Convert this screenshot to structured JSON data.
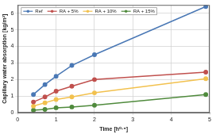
{
  "chart_data": {
    "type": "line",
    "x_label": "Time [h⁰·⁵]",
    "y_label": "Capillary water absorption [kg/m²]",
    "x": [
      0.41,
      0.71,
      1,
      1.41,
      2,
      4.9
    ],
    "series": [
      {
        "name": "Ref",
        "color": "#4a78b5",
        "values": [
          1.1,
          1.7,
          2.2,
          2.85,
          3.5,
          6.4
        ]
      },
      {
        "name": "RA + 5%",
        "color": "#c0504d",
        "values": [
          0.65,
          0.95,
          1.3,
          1.6,
          2.0,
          2.45
        ]
      },
      {
        "name": "RA + 10%",
        "color": "#f2c14e",
        "values": [
          0.4,
          0.6,
          0.8,
          0.95,
          1.2,
          2.05
        ]
      },
      {
        "name": "RA + 15%",
        "color": "#4f8a3c",
        "values": [
          0.15,
          0.2,
          0.3,
          0.35,
          0.45,
          1.1
        ]
      }
    ],
    "xlim": [
      0,
      5
    ],
    "xticks": [
      0,
      1,
      2,
      3,
      4,
      5
    ],
    "ylim": [
      0,
      6.5
    ],
    "yticks": [
      0,
      1,
      2,
      3,
      4,
      5,
      6
    ],
    "grid": true,
    "legend": "upper left",
    "marker": "circle",
    "line_style": "solid"
  }
}
